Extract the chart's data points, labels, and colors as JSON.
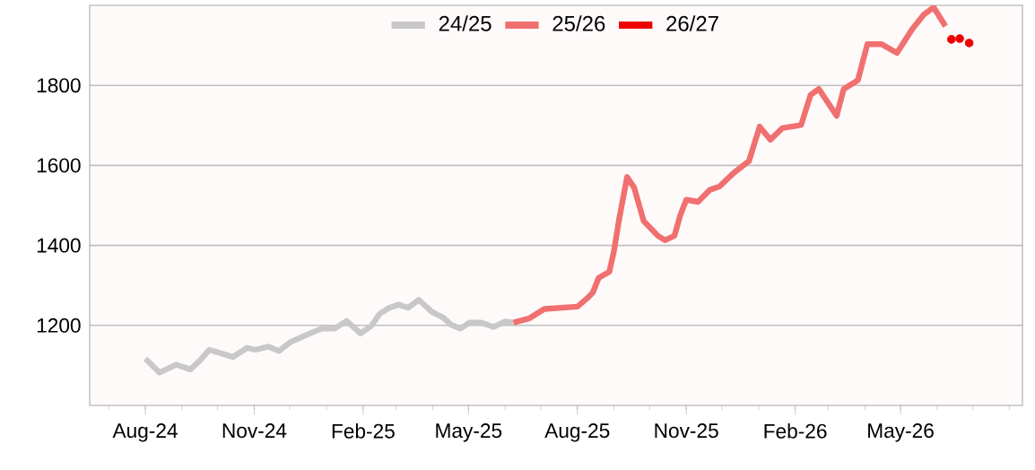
{
  "chart_data": {
    "type": "line",
    "xlim": [
      "2024-06-15",
      "2026-08-12"
    ],
    "ylim": [
      1000,
      2000
    ],
    "yticks": [
      1200,
      1400,
      1600,
      1800
    ],
    "xticks": [
      {
        "value": "2024-08-01",
        "label": "Aug-24"
      },
      {
        "value": "2024-11-01",
        "label": "Nov-24"
      },
      {
        "value": "2025-02-01",
        "label": "Feb-25"
      },
      {
        "value": "2025-05-01",
        "label": "May-25"
      },
      {
        "value": "2025-08-01",
        "label": "Aug-25"
      },
      {
        "value": "2025-11-01",
        "label": "Nov-25"
      },
      {
        "value": "2026-02-01",
        "label": "Feb-26"
      },
      {
        "value": "2026-05-01",
        "label": "May-26"
      }
    ],
    "grid": "y",
    "legend": "top",
    "line_style": "solid",
    "series": [
      {
        "name": "24/25",
        "color": "#c8c8c8",
        "x": [
          "2024-08-01",
          "2024-08-13",
          "2024-08-27",
          "2024-09-08",
          "2024-09-16",
          "2024-09-24",
          "2024-10-14",
          "2024-10-26",
          "2024-11-02",
          "2024-11-13",
          "2024-11-22",
          "2024-12-02",
          "2024-12-18",
          "2024-12-28",
          "2025-01-08",
          "2025-01-18",
          "2025-01-30",
          "2025-02-08",
          "2025-02-15",
          "2025-02-23",
          "2025-03-03",
          "2025-03-11",
          "2025-03-20",
          "2025-03-31",
          "2025-04-10",
          "2025-04-16",
          "2025-04-24",
          "2025-05-02",
          "2025-05-12",
          "2025-05-22",
          "2025-06-01",
          "2025-06-08"
        ],
        "values": [
          1117,
          1082,
          1102,
          1090,
          1112,
          1139,
          1121,
          1144,
          1139,
          1147,
          1136,
          1159,
          1180,
          1192,
          1192,
          1211,
          1180,
          1199,
          1229,
          1244,
          1252,
          1244,
          1264,
          1234,
          1219,
          1202,
          1192,
          1207,
          1207,
          1196,
          1210,
          1207
        ]
      },
      {
        "name": "25/26",
        "color": "#f07070",
        "x": [
          "2025-06-08",
          "2025-06-21",
          "2025-07-04",
          "2025-08-01",
          "2025-08-09",
          "2025-08-14",
          "2025-08-19",
          "2025-08-28",
          "2025-09-01",
          "2025-09-05",
          "2025-09-12",
          "2025-09-18",
          "2025-09-26",
          "2025-10-08",
          "2025-10-14",
          "2025-10-22",
          "2025-10-27",
          "2025-11-01",
          "2025-11-11",
          "2025-11-21",
          "2025-11-29",
          "2025-12-11",
          "2025-12-24",
          "2026-01-02",
          "2026-01-11",
          "2026-01-21",
          "2026-02-06",
          "2026-02-14",
          "2026-02-21",
          "2026-03-08",
          "2026-03-14",
          "2026-03-26",
          "2026-04-03",
          "2026-04-15",
          "2026-04-28",
          "2026-05-11",
          "2026-05-21",
          "2026-05-29",
          "2026-06-08"
        ],
        "values": [
          1207,
          1217,
          1241,
          1247,
          1267,
          1282,
          1319,
          1334,
          1387,
          1461,
          1571,
          1544,
          1461,
          1424,
          1413,
          1424,
          1476,
          1514,
          1509,
          1539,
          1547,
          1581,
          1611,
          1697,
          1664,
          1693,
          1701,
          1776,
          1791,
          1724,
          1791,
          1813,
          1903,
          1903,
          1881,
          1941,
          1978,
          1995,
          1948
        ]
      },
      {
        "name": "26/27",
        "type": "scatter",
        "color": "#ee0000",
        "marker": "circle",
        "x": [
          "2026-06-13",
          "2026-06-20",
          "2026-06-28"
        ],
        "values": [
          1915,
          1917,
          1906
        ]
      }
    ]
  }
}
